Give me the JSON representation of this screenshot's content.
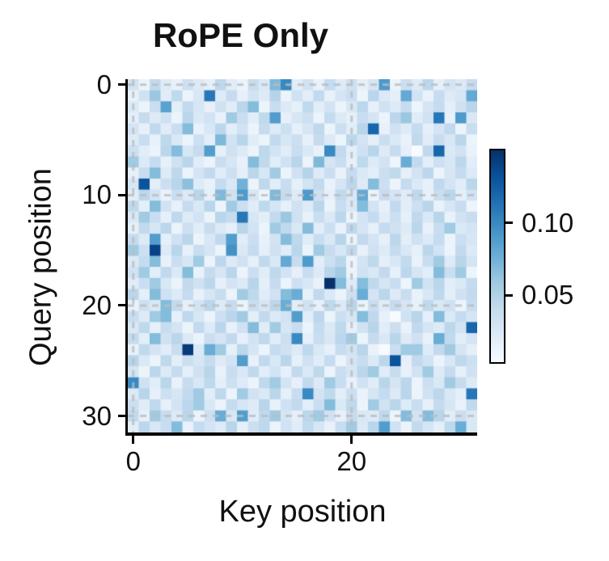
{
  "title": "RoPE Only",
  "colors": {
    "background": "#ffffff",
    "spine": "#000000",
    "text": "#111111",
    "gridline": "#bbbbbb",
    "colormap_name": "Blues",
    "colormap_anchors": [
      "#f7fbff",
      "#deebf7",
      "#c6dbef",
      "#9ecae1",
      "#6baed6",
      "#4292c6",
      "#2171b5",
      "#08519c",
      "#08306b"
    ]
  },
  "axes": {
    "y_tick_labels": [
      "0",
      "10",
      "20",
      "30"
    ],
    "x_tick_labels": [
      "0",
      "20"
    ],
    "colorbar_labels": [
      "0.10",
      "0.05"
    ]
  },
  "chart_data": {
    "type": "heatmap",
    "title": "RoPE Only",
    "xlabel": "Key position",
    "ylabel": "Query position",
    "n_rows": 32,
    "n_cols": 32,
    "x_ticks": [
      0,
      20
    ],
    "y_ticks": [
      0,
      10,
      20,
      30
    ],
    "colorbar_ticks": [
      0.1,
      0.05
    ],
    "vmin": 0.004,
    "vmax": 0.15,
    "grid": "dashed gray lines at tick positions (y: 0,10,20,30; x: 0,20), drawn over cells",
    "legend_position": "colorbar right",
    "values": [
      [
        0.031,
        0.012,
        0.042,
        0.022,
        0.015,
        0.035,
        0.024,
        0.018,
        0.044,
        0.021,
        0.013,
        0.038,
        0.025,
        0.07,
        0.1,
        0.02,
        0.032,
        0.014,
        0.041,
        0.023,
        0.035,
        0.017,
        0.028,
        0.09,
        0.012,
        0.036,
        0.022,
        0.045,
        0.018,
        0.03,
        0.024,
        0.04
      ],
      [
        0.015,
        0.033,
        0.06,
        0.021,
        0.044,
        0.012,
        0.027,
        0.11,
        0.023,
        0.04,
        0.016,
        0.031,
        0.022,
        0.048,
        0.013,
        0.034,
        0.02,
        0.042,
        0.015,
        0.029,
        0.037,
        0.011,
        0.046,
        0.024,
        0.018,
        0.08,
        0.032,
        0.014,
        0.039,
        0.022,
        0.028,
        0.08
      ],
      [
        0.025,
        0.013,
        0.037,
        0.085,
        0.019,
        0.042,
        0.028,
        0.015,
        0.033,
        0.021,
        0.046,
        0.068,
        0.012,
        0.038,
        0.024,
        0.017,
        0.043,
        0.02,
        0.031,
        0.013,
        0.027,
        0.045,
        0.016,
        0.034,
        0.022,
        0.039,
        0.011,
        0.029,
        0.041,
        0.018,
        0.033,
        0.047
      ],
      [
        0.018,
        0.04,
        0.022,
        0.033,
        0.012,
        0.046,
        0.025,
        0.031,
        0.014,
        0.058,
        0.037,
        0.02,
        0.043,
        0.088,
        0.016,
        0.028,
        0.035,
        0.013,
        0.041,
        0.024,
        0.017,
        0.038,
        0.029,
        0.012,
        0.045,
        0.06,
        0.021,
        0.032,
        0.11,
        0.015,
        0.09,
        0.026
      ],
      [
        0.03,
        0.016,
        0.043,
        0.021,
        0.037,
        0.068,
        0.014,
        0.027,
        0.045,
        0.019,
        0.032,
        0.012,
        0.04,
        0.023,
        0.035,
        0.017,
        0.028,
        0.044,
        0.013,
        0.036,
        0.02,
        0.047,
        0.12,
        0.015,
        0.033,
        0.022,
        0.041,
        0.018,
        0.03,
        0.043,
        0.012,
        0.038
      ],
      [
        0.022,
        0.038,
        0.015,
        0.044,
        0.026,
        0.012,
        0.035,
        0.019,
        0.07,
        0.031,
        0.047,
        0.02,
        0.013,
        0.042,
        0.028,
        0.036,
        0.016,
        0.04,
        0.024,
        0.011,
        0.045,
        0.03,
        0.018,
        0.037,
        0.025,
        0.014,
        0.043,
        0.021,
        0.039,
        0.027,
        0.046,
        0.013
      ],
      [
        0.035,
        0.02,
        0.013,
        0.046,
        0.068,
        0.028,
        0.04,
        0.088,
        0.017,
        0.033,
        0.024,
        0.012,
        0.044,
        0.031,
        0.021,
        0.038,
        0.026,
        0.015,
        0.1,
        0.042,
        0.019,
        0.034,
        0.047,
        0.022,
        0.039,
        0.016,
        0.004,
        0.043,
        0.12,
        0.025,
        0.032,
        0.014
      ],
      [
        0.058,
        0.024,
        0.041,
        0.017,
        0.033,
        0.046,
        0.021,
        0.012,
        0.037,
        0.028,
        0.015,
        0.068,
        0.043,
        0.02,
        0.034,
        0.047,
        0.013,
        0.07,
        0.029,
        0.038,
        0.016,
        0.044,
        0.023,
        0.031,
        0.011,
        0.078,
        0.042,
        0.019,
        0.035,
        0.027,
        0.045,
        0.02
      ],
      [
        0.016,
        0.039,
        0.068,
        0.023,
        0.044,
        0.013,
        0.03,
        0.042,
        0.021,
        0.035,
        0.018,
        0.046,
        0.027,
        0.058,
        0.012,
        0.033,
        0.048,
        0.022,
        0.037,
        0.014,
        0.041,
        0.025,
        0.019,
        0.036,
        0.043,
        0.017,
        0.031,
        0.045,
        0.012,
        0.028,
        0.04,
        0.024
      ],
      [
        0.028,
        0.13,
        0.019,
        0.036,
        0.047,
        0.065,
        0.023,
        0.015,
        0.041,
        0.026,
        0.075,
        0.013,
        0.044,
        0.02,
        0.038,
        0.017,
        0.031,
        0.042,
        0.014,
        0.029,
        0.045,
        0.022,
        0.068,
        0.035,
        0.012,
        0.04,
        0.025,
        0.016,
        0.043,
        0.03,
        0.021,
        0.046
      ],
      [
        0.02,
        0.045,
        0.031,
        0.014,
        0.038,
        0.024,
        0.047,
        0.017,
        0.07,
        0.033,
        0.09,
        0.028,
        0.012,
        0.07,
        0.041,
        0.022,
        0.09,
        0.035,
        0.016,
        0.043,
        0.026,
        0.08,
        0.013,
        0.039,
        0.03,
        0.021,
        0.044,
        0.015,
        0.037,
        0.046,
        0.018,
        0.032
      ],
      [
        0.043,
        0.018,
        0.068,
        0.032,
        0.015,
        0.04,
        0.026,
        0.047,
        0.012,
        0.058,
        0.036,
        0.021,
        0.044,
        0.029,
        0.017,
        0.034,
        0.023,
        0.046,
        0.013,
        0.038,
        0.025,
        0.068,
        0.031,
        0.016,
        0.042,
        0.02,
        0.035,
        0.047,
        0.014,
        0.028,
        0.039,
        0.011
      ],
      [
        0.025,
        0.058,
        0.038,
        0.016,
        0.044,
        0.022,
        0.031,
        0.013,
        0.046,
        0.04,
        0.11,
        0.027,
        0.019,
        0.042,
        0.06,
        0.033,
        0.015,
        0.037,
        0.024,
        0.045,
        0.012,
        0.03,
        0.041,
        0.021,
        0.036,
        0.017,
        0.043,
        0.026,
        0.047,
        0.014,
        0.032,
        0.038
      ],
      [
        0.017,
        0.042,
        0.028,
        0.045,
        0.013,
        0.035,
        0.021,
        0.039,
        0.024,
        0.016,
        0.047,
        0.031,
        0.012,
        0.058,
        0.043,
        0.026,
        0.068,
        0.02,
        0.036,
        0.014,
        0.044,
        0.029,
        0.017,
        0.041,
        0.033,
        0.022,
        0.046,
        0.015,
        0.038,
        0.058,
        0.025,
        0.03
      ],
      [
        0.04,
        0.023,
        0.088,
        0.018,
        0.034,
        0.046,
        0.012,
        0.027,
        0.043,
        0.088,
        0.02,
        0.037,
        0.015,
        0.031,
        0.068,
        0.044,
        0.021,
        0.038,
        0.026,
        0.047,
        0.013,
        0.042,
        0.03,
        0.016,
        0.045,
        0.019,
        0.033,
        0.024,
        0.041,
        0.012,
        0.036,
        0.028
      ],
      [
        0.058,
        0.035,
        0.14,
        0.022,
        0.047,
        0.016,
        0.038,
        0.029,
        0.013,
        0.095,
        0.025,
        0.041,
        0.018,
        0.033,
        0.021,
        0.046,
        0.012,
        0.058,
        0.039,
        0.027,
        0.043,
        0.015,
        0.034,
        0.022,
        0.04,
        0.026,
        0.017,
        0.045,
        0.031,
        0.013,
        0.042,
        0.024
      ],
      [
        0.024,
        0.041,
        0.068,
        0.015,
        0.037,
        0.028,
        0.058,
        0.013,
        0.045,
        0.022,
        0.033,
        0.017,
        0.043,
        0.026,
        0.08,
        0.039,
        0.09,
        0.02,
        0.035,
        0.046,
        0.012,
        0.031,
        0.044,
        0.018,
        0.027,
        0.042,
        0.014,
        0.038,
        0.058,
        0.023,
        0.047,
        0.03
      ],
      [
        0.032,
        0.058,
        0.019,
        0.043,
        0.025,
        0.068,
        0.014,
        0.04,
        0.028,
        0.046,
        0.012,
        0.036,
        0.021,
        0.044,
        0.031,
        0.016,
        0.038,
        0.023,
        0.047,
        0.058,
        0.013,
        0.034,
        0.026,
        0.042,
        0.017,
        0.045,
        0.029,
        0.02,
        0.068,
        0.037,
        0.058,
        0.011
      ],
      [
        0.021,
        0.037,
        0.058,
        0.026,
        0.013,
        0.042,
        0.033,
        0.045,
        0.016,
        0.03,
        0.024,
        0.047,
        0.018,
        0.04,
        0.012,
        0.035,
        0.027,
        0.014,
        0.15,
        0.068,
        0.022,
        0.068,
        0.043,
        0.029,
        0.038,
        0.011,
        0.058,
        0.032,
        0.046,
        0.02,
        0.025,
        0.041
      ],
      [
        0.046,
        0.018,
        0.068,
        0.034,
        0.023,
        0.041,
        0.015,
        0.028,
        0.039,
        0.013,
        0.058,
        0.044,
        0.021,
        0.032,
        0.068,
        0.078,
        0.017,
        0.043,
        0.025,
        0.012,
        0.036,
        0.078,
        0.03,
        0.046,
        0.022,
        0.038,
        0.014,
        0.027,
        0.044,
        0.019,
        0.033,
        0.042
      ],
      [
        0.014,
        0.035,
        0.026,
        0.068,
        0.042,
        0.017,
        0.031,
        0.046,
        0.023,
        0.04,
        0.012,
        0.038,
        0.028,
        0.045,
        0.078,
        0.02,
        0.033,
        0.016,
        0.044,
        0.024,
        0.047,
        0.013,
        0.037,
        0.021,
        0.041,
        0.029,
        0.015,
        0.043,
        0.026,
        0.034,
        0.011,
        0.039
      ],
      [
        0.038,
        0.022,
        0.058,
        0.068,
        0.016,
        0.044,
        0.027,
        0.013,
        0.035,
        0.046,
        0.058,
        0.019,
        0.042,
        0.024,
        0.031,
        0.088,
        0.02,
        0.045,
        0.012,
        0.036,
        0.028,
        0.068,
        0.043,
        0.015,
        0.004,
        0.033,
        0.047,
        0.018,
        0.068,
        0.025,
        0.04,
        0.029
      ],
      [
        0.026,
        0.044,
        0.017,
        0.039,
        0.03,
        0.012,
        0.042,
        0.023,
        0.046,
        0.015,
        0.034,
        0.068,
        0.021,
        0.058,
        0.028,
        0.038,
        0.013,
        0.041,
        0.025,
        0.044,
        0.016,
        0.032,
        0.047,
        0.02,
        0.036,
        0.014,
        0.043,
        0.029,
        0.022,
        0.045,
        0.031,
        0.12
      ],
      [
        0.041,
        0.019,
        0.068,
        0.033,
        0.046,
        0.024,
        0.013,
        0.037,
        0.029,
        0.042,
        0.016,
        0.031,
        0.044,
        0.021,
        0.035,
        0.1,
        0.018,
        0.038,
        0.027,
        0.045,
        0.058,
        0.012,
        0.04,
        0.026,
        0.047,
        0.022,
        0.034,
        0.015,
        0.078,
        0.043,
        0.02,
        0.03
      ],
      [
        0.015,
        0.043,
        0.03,
        0.021,
        0.038,
        0.145,
        0.025,
        0.078,
        0.058,
        0.017,
        0.045,
        0.028,
        0.012,
        0.041,
        0.033,
        0.022,
        0.044,
        0.026,
        0.016,
        0.039,
        0.031,
        0.047,
        0.014,
        0.004,
        0.037,
        0.058,
        0.058,
        0.023,
        0.042,
        0.058,
        0.029,
        0.018
      ],
      [
        0.047,
        0.025,
        0.013,
        0.044,
        0.019,
        0.036,
        0.028,
        0.04,
        0.022,
        0.031,
        0.088,
        0.015,
        0.043,
        0.026,
        0.046,
        0.017,
        0.034,
        0.021,
        0.041,
        0.013,
        0.029,
        0.038,
        0.024,
        0.045,
        0.13,
        0.016,
        0.042,
        0.032,
        0.012,
        0.027,
        0.044,
        0.035
      ],
      [
        0.029,
        0.012,
        0.045,
        0.024,
        0.041,
        0.018,
        0.033,
        0.047,
        0.014,
        0.038,
        0.026,
        0.043,
        0.02,
        0.031,
        0.016,
        0.042,
        0.025,
        0.044,
        0.013,
        0.037,
        0.028,
        0.046,
        0.058,
        0.021,
        0.039,
        0.015,
        0.032,
        0.058,
        0.023,
        0.041,
        0.017,
        0.034
      ],
      [
        0.1,
        0.033,
        0.02,
        0.046,
        0.014,
        0.039,
        0.027,
        0.044,
        0.018,
        0.035,
        0.023,
        0.012,
        0.043,
        0.058,
        0.03,
        0.016,
        0.042,
        0.024,
        0.058,
        0.038,
        0.015,
        0.033,
        0.021,
        0.047,
        0.029,
        0.045,
        0.013,
        0.036,
        0.026,
        0.058,
        0.04,
        0.022
      ],
      [
        0.023,
        0.047,
        0.016,
        0.035,
        0.028,
        0.042,
        0.058,
        0.02,
        0.044,
        0.013,
        0.058,
        0.032,
        0.025,
        0.046,
        0.017,
        0.038,
        0.1,
        0.031,
        0.043,
        0.019,
        0.036,
        0.014,
        0.029,
        0.041,
        0.024,
        0.046,
        0.012,
        0.033,
        0.045,
        0.026,
        0.018,
        0.11
      ],
      [
        0.036,
        0.021,
        0.043,
        0.017,
        0.031,
        0.045,
        0.058,
        0.026,
        0.013,
        0.04,
        0.028,
        0.022,
        0.047,
        0.015,
        0.034,
        0.042,
        0.019,
        0.037,
        0.068,
        0.025,
        0.044,
        0.012,
        0.058,
        0.032,
        0.046,
        0.023,
        0.038,
        0.016,
        0.041,
        0.028,
        0.014,
        0.043
      ],
      [
        0.042,
        0.016,
        0.058,
        0.039,
        0.024,
        0.046,
        0.013,
        0.035,
        0.078,
        0.027,
        0.088,
        0.021,
        0.043,
        0.058,
        0.029,
        0.018,
        0.045,
        0.058,
        0.033,
        0.015,
        0.04,
        0.026,
        0.022,
        0.044,
        0.012,
        0.068,
        0.031,
        0.068,
        0.047,
        0.02,
        0.037,
        0.025
      ],
      [
        0.019,
        0.045,
        0.027,
        0.038,
        0.068,
        0.014,
        0.041,
        0.03,
        0.023,
        0.047,
        0.017,
        0.036,
        0.044,
        0.012,
        0.032,
        0.021,
        0.043,
        0.028,
        0.015,
        0.039,
        0.058,
        0.024,
        0.046,
        0.088,
        0.034,
        0.013,
        0.042,
        0.029,
        0.018,
        0.044,
        0.078,
        0.026
      ]
    ]
  }
}
